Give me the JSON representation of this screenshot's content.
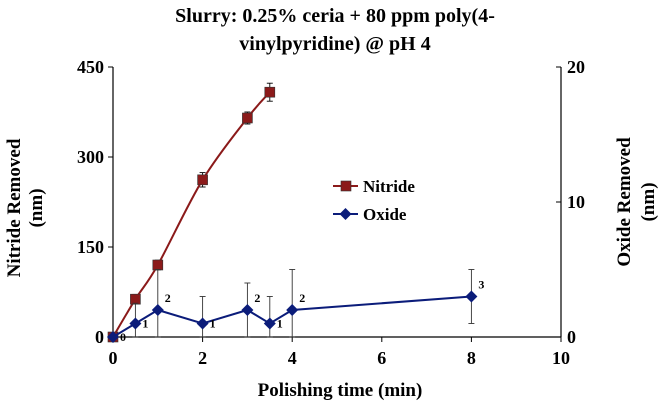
{
  "chart_data": {
    "type": "line",
    "title": [
      "Slurry: 0.25% ceria + 80 ppm poly(4-",
      "vinylpyridine) @ pH 4"
    ],
    "xlabel": "Polishing time (min)",
    "ylabel_left": [
      "Nitride Removed",
      "(nm)"
    ],
    "ylabel_right": [
      "Oxide Removed",
      "(nm)"
    ],
    "xlim": [
      0,
      10
    ],
    "ylim_left": [
      0,
      450
    ],
    "ylim_right": [
      0,
      20
    ],
    "x_ticks": [
      "0",
      "2",
      "4",
      "6",
      "8",
      "10"
    ],
    "y_left_ticks": [
      "0",
      "150",
      "300",
      "450"
    ],
    "y_right_ticks": [
      "0",
      "10",
      "20"
    ],
    "grid": false,
    "legend_position": "center-right",
    "series": [
      {
        "name": "Nitride",
        "axis": "left",
        "color": "#8B1A1A",
        "marker": "square",
        "x": [
          0,
          0.5,
          1,
          2,
          3,
          3.5
        ],
        "y": [
          0,
          63,
          120,
          262,
          365,
          408
        ],
        "err": [
          0,
          8,
          8,
          12,
          10,
          15
        ]
      },
      {
        "name": "Oxide",
        "axis": "right",
        "color": "#0B1C7A",
        "marker": "diamond",
        "x": [
          0,
          0.5,
          1,
          2,
          3,
          3.5,
          4,
          8
        ],
        "y": [
          0,
          1,
          2,
          1,
          2,
          1,
          2,
          3
        ],
        "err": [
          0,
          1.5,
          3,
          2,
          2,
          2,
          3,
          2
        ],
        "point_labels": [
          "0",
          "1",
          "2",
          "1",
          "2",
          "1",
          "2",
          "3"
        ]
      }
    ]
  }
}
